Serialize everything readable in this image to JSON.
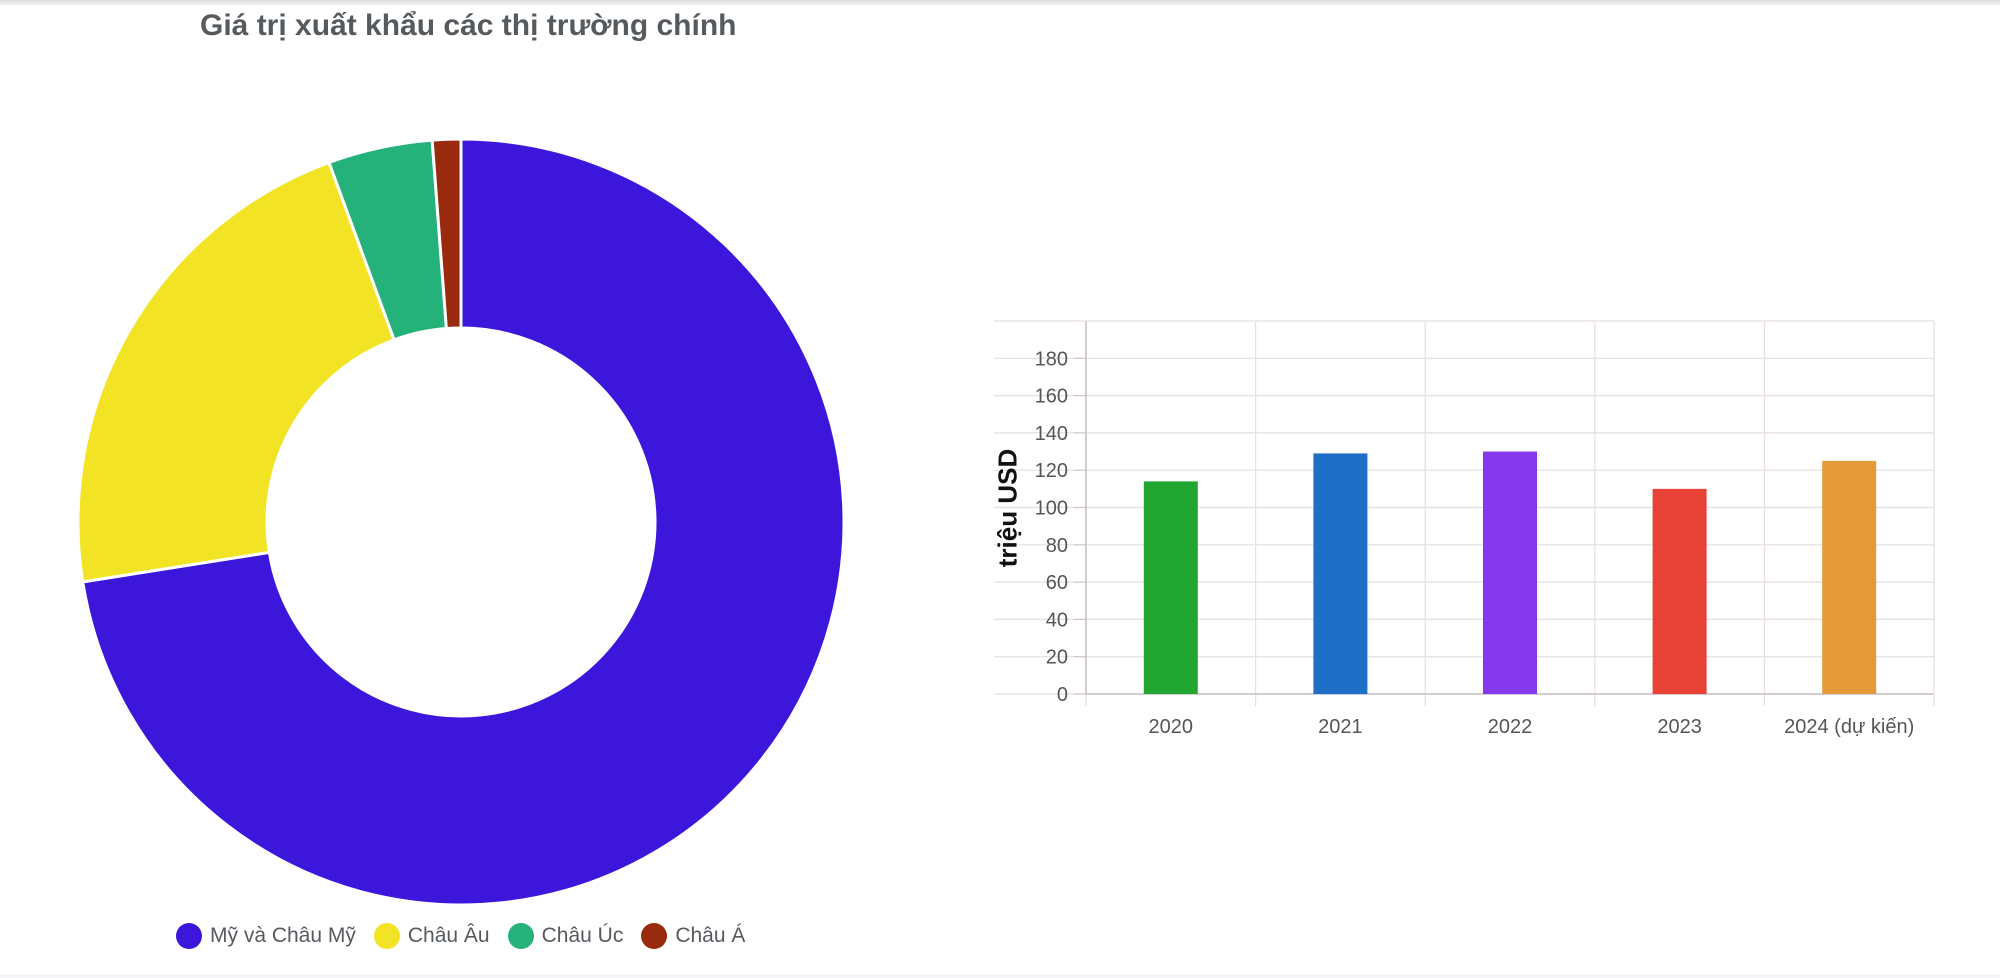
{
  "title": "Giá trị xuất khẩu các thị trường chính",
  "chart_data": [
    {
      "type": "pie",
      "variant": "doughnut",
      "title": "Giá trị xuất khẩu các thị trường chính",
      "labels": [
        "Mỹ và Châu Mỹ",
        "Châu Âu",
        "Châu Úc",
        "Châu Á"
      ],
      "values": [
        72.5,
        21.9,
        4.4,
        1.2
      ],
      "colors": [
        "#3d16dc",
        "#f2e424",
        "#25b27a",
        "#9a2a0d"
      ],
      "legend": "bottom"
    },
    {
      "type": "bar",
      "categories": [
        "2020",
        "2021",
        "2022",
        "2023",
        "2024 (dự kiến)"
      ],
      "values": [
        114,
        129,
        130,
        110,
        125
      ],
      "colors": [
        "#21a632",
        "#1f6fc6",
        "#8638ec",
        "#e84236",
        "#e59a3a"
      ],
      "ylabel": "triệu USD",
      "ylim": [
        0,
        200
      ],
      "yticks": [
        0,
        20,
        40,
        60,
        80,
        100,
        120,
        140,
        160,
        180
      ],
      "grid": true
    }
  ]
}
